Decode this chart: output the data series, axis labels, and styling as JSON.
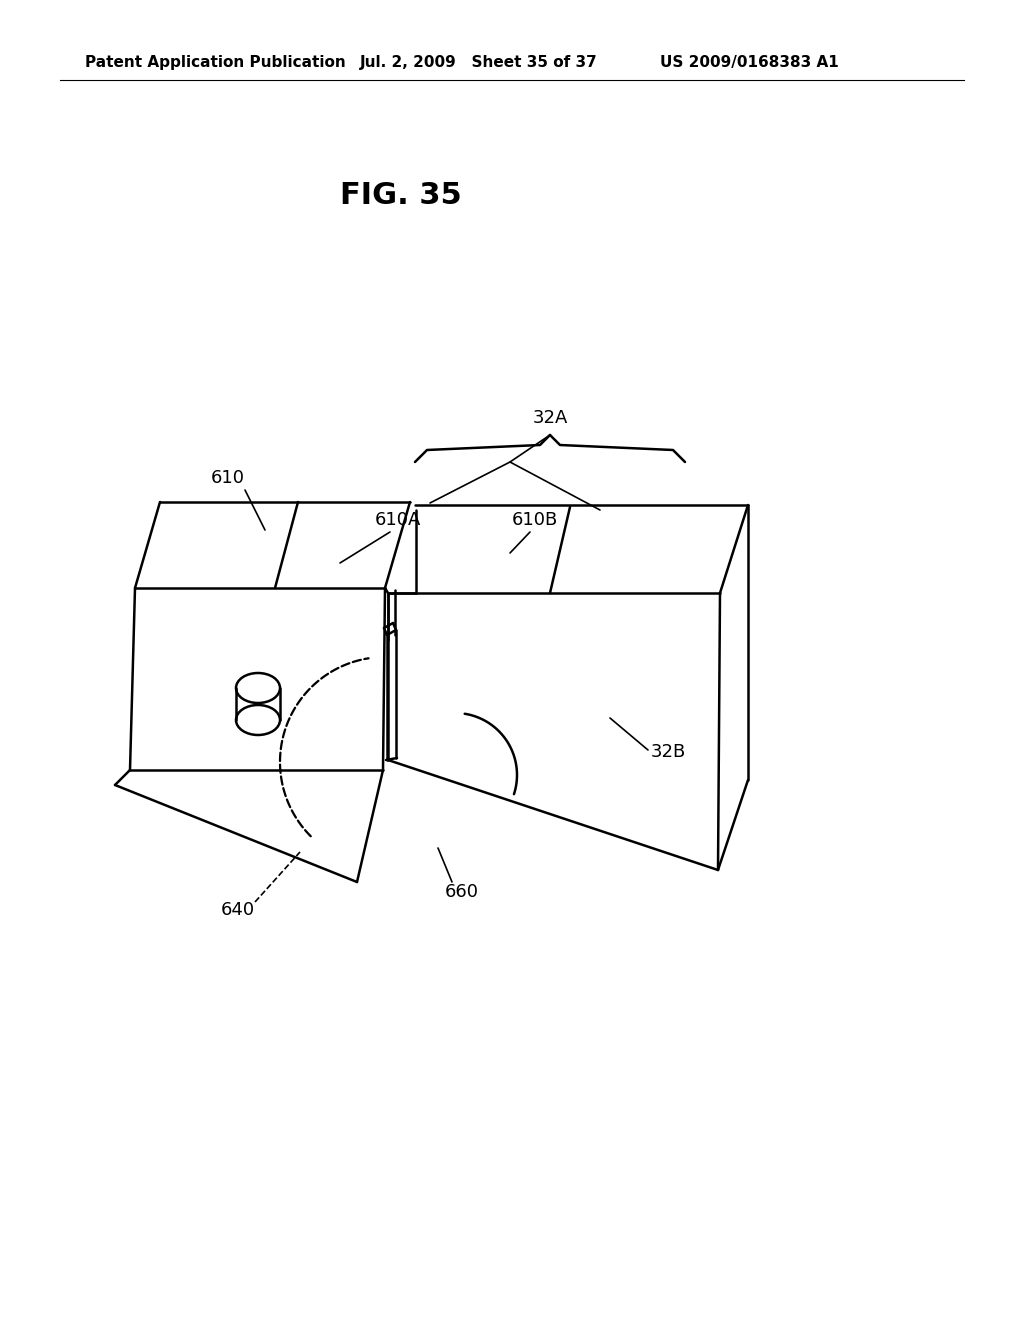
{
  "background_color": "#ffffff",
  "header_left": "Patent Application Publication",
  "header_center": "Jul. 2, 2009   Sheet 35 of 37",
  "header_right": "US 2009/0168383 A1",
  "fig_label": "FIG. 35",
  "line_color": "#000000",
  "line_width": 1.8,
  "header_fontsize": 11,
  "fig_label_fontsize": 22
}
